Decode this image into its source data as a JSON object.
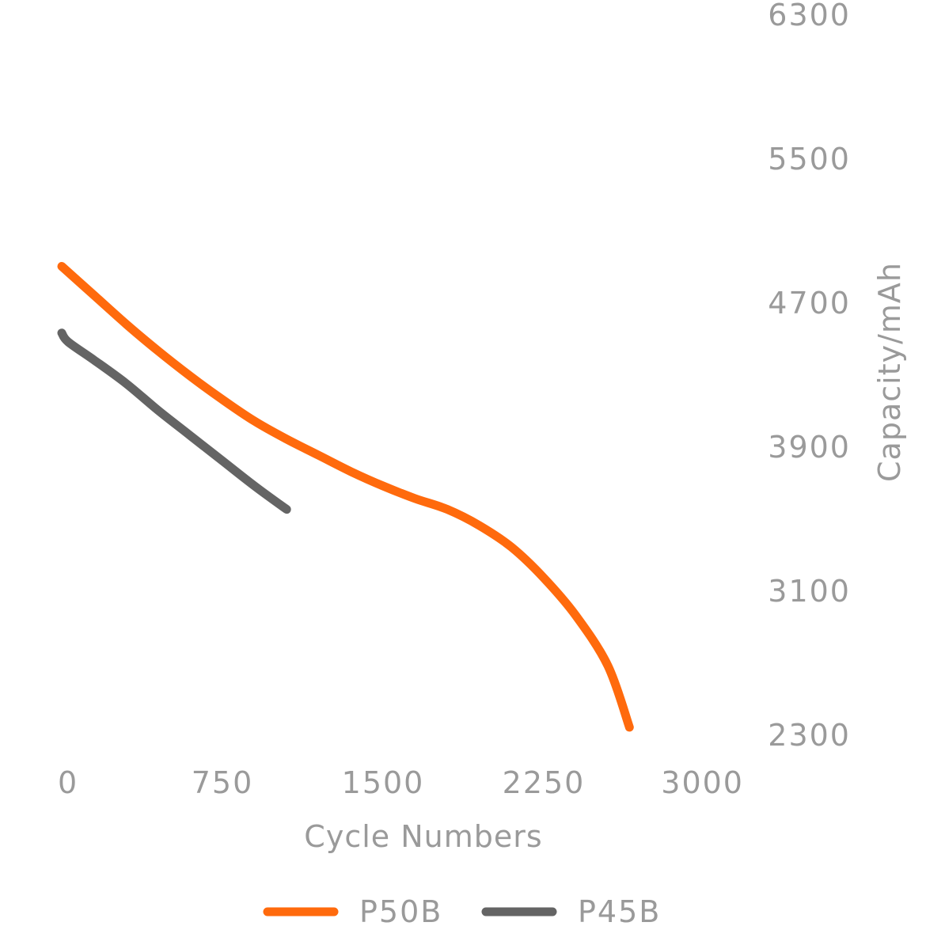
{
  "chart_data": {
    "type": "line",
    "title": "",
    "xlabel": "Cycle Numbers",
    "ylabel": "Capacity/mAh",
    "xlim": [
      0,
      3000
    ],
    "ylim": [
      2300,
      6300
    ],
    "x_ticks": [
      "0",
      "750",
      "1500",
      "2250",
      "3000"
    ],
    "y_ticks": [
      "6300",
      "5500",
      "4700",
      "3900",
      "3100",
      "2300"
    ],
    "x_tick_values": [
      0,
      750,
      1500,
      2250,
      3000
    ],
    "y_tick_values": [
      6300,
      5500,
      4700,
      3900,
      3100,
      2300
    ],
    "y_axis_side": "right",
    "grid": false,
    "legend_position": "bottom-center",
    "series": [
      {
        "name": "P50B",
        "color": "#ff6a0d",
        "x": [
          0,
          150,
          300,
          450,
          600,
          750,
          900,
          1050,
          1200,
          1350,
          1500,
          1650,
          1800,
          1950,
          2100,
          2250,
          2400,
          2550,
          2650
        ],
        "y": [
          4900,
          4740,
          4580,
          4430,
          4290,
          4160,
          4040,
          3940,
          3850,
          3760,
          3680,
          3610,
          3550,
          3460,
          3340,
          3170,
          2960,
          2680,
          2340
        ]
      },
      {
        "name": "P45B",
        "color": "#646464",
        "x": [
          0,
          30,
          150,
          300,
          450,
          600,
          750,
          900,
          1050
        ],
        "y": [
          4530,
          4480,
          4380,
          4250,
          4100,
          3960,
          3820,
          3680,
          3550
        ]
      }
    ]
  }
}
